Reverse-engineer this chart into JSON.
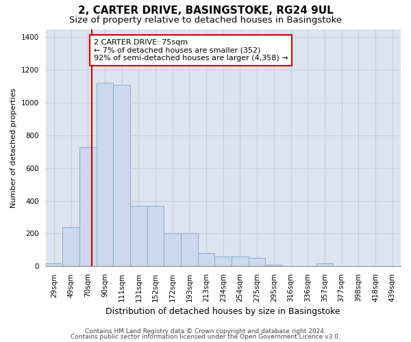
{
  "title1": "2, CARTER DRIVE, BASINGSTOKE, RG24 9UL",
  "title2": "Size of property relative to detached houses in Basingstoke",
  "xlabel": "Distribution of detached houses by size in Basingstoke",
  "ylabel": "Number of detached properties",
  "categories": [
    "29sqm",
    "49sqm",
    "70sqm",
    "90sqm",
    "111sqm",
    "131sqm",
    "152sqm",
    "172sqm",
    "193sqm",
    "213sqm",
    "234sqm",
    "254sqm",
    "275sqm",
    "295sqm",
    "316sqm",
    "336sqm",
    "357sqm",
    "377sqm",
    "398sqm",
    "418sqm",
    "439sqm"
  ],
  "bar_values": [
    20,
    240,
    730,
    1120,
    1110,
    370,
    370,
    200,
    200,
    80,
    60,
    60,
    50,
    10,
    0,
    0,
    20,
    0,
    0,
    0,
    0
  ],
  "bar_color": "#ccd8ee",
  "bar_edge_color": "#8aaacf",
  "grid_color": "#c5cfe0",
  "background_color": "#dde4f0",
  "vline_color": "#cc0000",
  "vline_x": 2.25,
  "annotation_text": "2 CARTER DRIVE: 75sqm\n← 7% of detached houses are smaller (352)\n92% of semi-detached houses are larger (4,358) →",
  "annotation_box_facecolor": "#ffffff",
  "annotation_box_edgecolor": "#cc0000",
  "ylim": [
    0,
    1450
  ],
  "yticks": [
    0,
    200,
    400,
    600,
    800,
    1000,
    1200,
    1400
  ],
  "footer1": "Contains HM Land Registry data © Crown copyright and database right 2024.",
  "footer2": "Contains public sector information licensed under the Open Government Licence v3.0.",
  "title1_fontsize": 11,
  "title2_fontsize": 9.5,
  "xlabel_fontsize": 9,
  "ylabel_fontsize": 8,
  "tick_fontsize": 7.5,
  "annotation_fontsize": 8,
  "footer_fontsize": 6.5
}
